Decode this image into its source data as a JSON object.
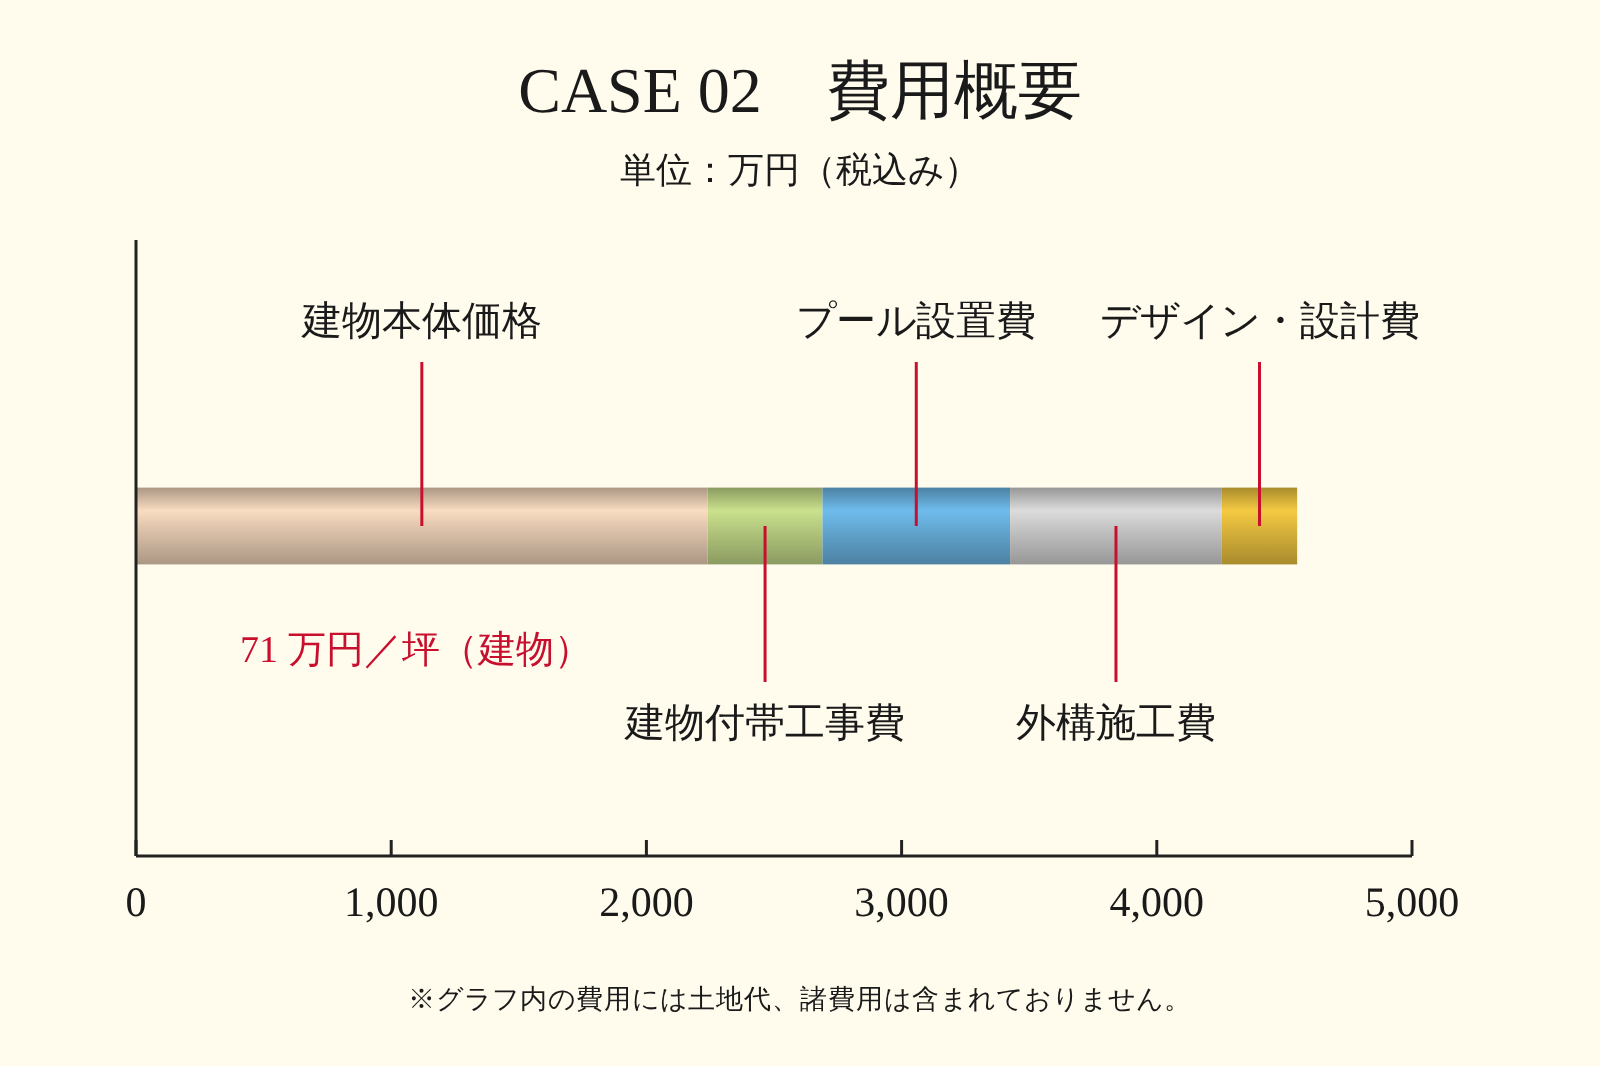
{
  "chart_data": {
    "type": "bar",
    "orientation": "horizontal",
    "stacked": true,
    "title": "CASE 02　費用概要",
    "subtitle": "単位：万円（税込み）",
    "categories": [
      null
    ],
    "series": [
      {
        "name": "建物本体価格",
        "color": "#dcc2aa",
        "values": [
          2240
        ]
      },
      {
        "name": "建物付帯工事費",
        "color": "#b2c77c",
        "values": [
          450
        ]
      },
      {
        "name": "プール設置費",
        "color": "#62a6d0",
        "values": [
          735
        ]
      },
      {
        "name": "外構施工費",
        "color": "#c2c2c2",
        "values": [
          830
        ]
      },
      {
        "name": "デザイン・設計費",
        "color": "#d8b23a",
        "values": [
          295
        ]
      }
    ],
    "xlim": [
      0,
      5000
    ],
    "xticks": [
      0,
      {
        "value": 1000,
        "label": "1,000"
      },
      {
        "value": 2000,
        "label": "2,000"
      },
      {
        "value": 3000,
        "label": "3,000"
      },
      {
        "value": 4000,
        "label": "4,000"
      },
      {
        "value": 5000,
        "label": "5,000"
      }
    ],
    "annotations": [
      "71 万円／坪（建物）",
      "※グラフ内の費用には土地代、諸費用は含まれておりません。"
    ]
  }
}
